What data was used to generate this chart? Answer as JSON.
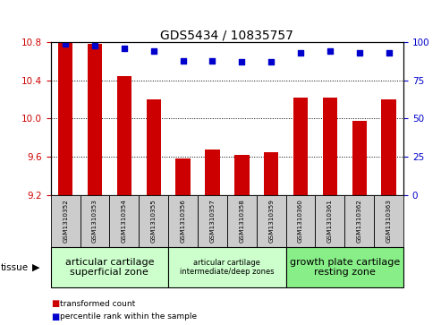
{
  "title": "GDS5434 / 10835757",
  "samples": [
    "GSM1310352",
    "GSM1310353",
    "GSM1310354",
    "GSM1310355",
    "GSM1310356",
    "GSM1310357",
    "GSM1310358",
    "GSM1310359",
    "GSM1310360",
    "GSM1310361",
    "GSM1310362",
    "GSM1310363"
  ],
  "bar_values": [
    10.8,
    10.78,
    10.45,
    10.2,
    9.58,
    9.68,
    9.62,
    9.65,
    10.22,
    10.22,
    9.98,
    10.2
  ],
  "percentile_values": [
    99,
    98,
    96,
    94,
    88,
    88,
    87,
    87,
    93,
    94,
    93,
    93
  ],
  "ylim_left": [
    9.2,
    10.8
  ],
  "ylim_right": [
    0,
    100
  ],
  "yticks_left": [
    9.2,
    9.6,
    10.0,
    10.4,
    10.8
  ],
  "yticks_right": [
    0,
    25,
    50,
    75,
    100
  ],
  "bar_color": "#cc0000",
  "dot_color": "#0000cc",
  "bg_color": "#ffffff",
  "sample_box_color": "#cccccc",
  "tissue_groups": [
    {
      "label": "articular cartilage\nsuperficial zone",
      "start": 0,
      "end": 4,
      "color": "#ccffcc",
      "fontsize": 8
    },
    {
      "label": "articular cartilage\nintermediate/deep zones",
      "start": 4,
      "end": 8,
      "color": "#ccffcc",
      "fontsize": 6
    },
    {
      "label": "growth plate cartilage\nresting zone",
      "start": 8,
      "end": 12,
      "color": "#88ee88",
      "fontsize": 8
    }
  ],
  "xlabel_tissue": "tissue",
  "legend_bar_label": "transformed count",
  "legend_dot_label": "percentile rank within the sample",
  "left_tick_color": "#cc0000",
  "right_tick_color": "#0000cc",
  "title_fontsize": 10
}
